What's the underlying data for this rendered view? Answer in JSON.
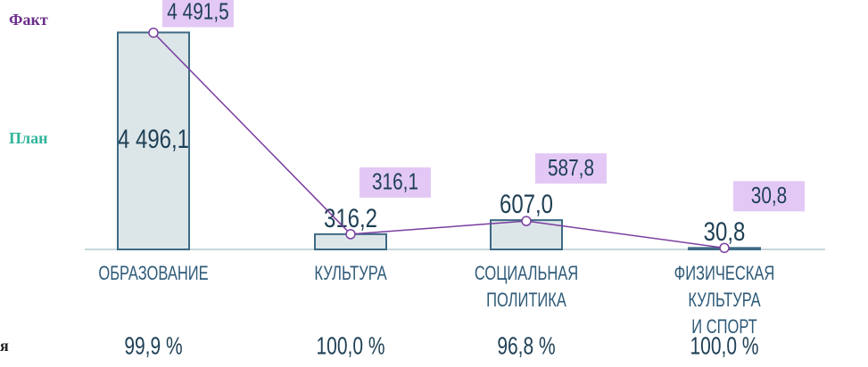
{
  "chart_data": {
    "type": "bar-line",
    "categories": [
      "ОБРАЗОВАНИЕ",
      "КУЛЬТУРА",
      "СОЦИАЛЬНАЯ\nПОЛИТИКА",
      "ФИЗИЧЕСКАЯ КУЛЬТУРА\nИ СПОРТ"
    ],
    "ylim": [
      0,
      4800
    ],
    "series": [
      {
        "name": "План",
        "type": "bar",
        "color": "#dce6e8",
        "values": [
          4496.1,
          316.2,
          607.0,
          30.8
        ],
        "value_labels": [
          "4 496,1",
          "316,2",
          "607,0",
          "30,8"
        ]
      },
      {
        "name": "Факт",
        "type": "line",
        "color": "#7b3fa0",
        "values": [
          4491.5,
          316.1,
          587.8,
          30.8
        ],
        "value_labels": [
          "4 491,5",
          "316,1",
          "587,8",
          "30,8"
        ]
      }
    ],
    "execution": {
      "name": "я",
      "values": [
        99.9,
        100.0,
        96.8,
        100.0
      ],
      "value_labels": [
        "99,9 %",
        "100,0 %",
        "96,8 %",
        "100,0 %"
      ]
    }
  }
}
